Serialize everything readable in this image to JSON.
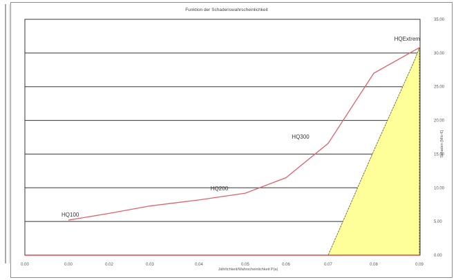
{
  "colors": {
    "line": "#e0606a",
    "fill": "#ffff99",
    "fill_edge": "#777744",
    "grid": "#333333",
    "baseline": "#d84848"
  },
  "chart_data": {
    "type": "line",
    "title": "Funktion der Schadenswahrscheinlichkeit",
    "xlabel": "Jährlichkeit/Wahrscheinlichkeit P(a)",
    "ylabel": "Schaden [Mio €]",
    "x_ticks": [
      "0.00",
      "0.00",
      "0.02",
      "0.03",
      "0.04",
      "0.05",
      "0.06",
      "0.07",
      "0.08",
      "0.09"
    ],
    "y_ticks": [
      "0.00",
      "5.00",
      "10.00",
      "15.00",
      "20.00",
      "25.00",
      "30.00",
      "35.00"
    ],
    "ylim": [
      0,
      35
    ],
    "y_axis_side": "right",
    "grid": true,
    "series": [
      {
        "x": [
          0,
          1,
          2,
          3,
          4,
          5,
          6,
          7,
          8,
          9
        ],
        "y": [
          0.5,
          5.2,
          6.2,
          7.3,
          8.2,
          9.2,
          11.5,
          16.6,
          27.0,
          30.8
        ]
      }
    ],
    "area": {
      "x": [
        7.0,
        8.0,
        8.9,
        9.0
      ],
      "y": [
        0,
        15.5,
        29.0,
        30.8
      ]
    },
    "labels": [
      {
        "text": "HQ100",
        "at": [
          1,
          5.2
        ]
      },
      {
        "text": "HQ200",
        "at": [
          4.4,
          9.1
        ]
      },
      {
        "text": "HQ300",
        "at": [
          6.3,
          16.8
        ]
      },
      {
        "text": "HQExtrem",
        "at": [
          8.6,
          31.3
        ]
      }
    ]
  }
}
